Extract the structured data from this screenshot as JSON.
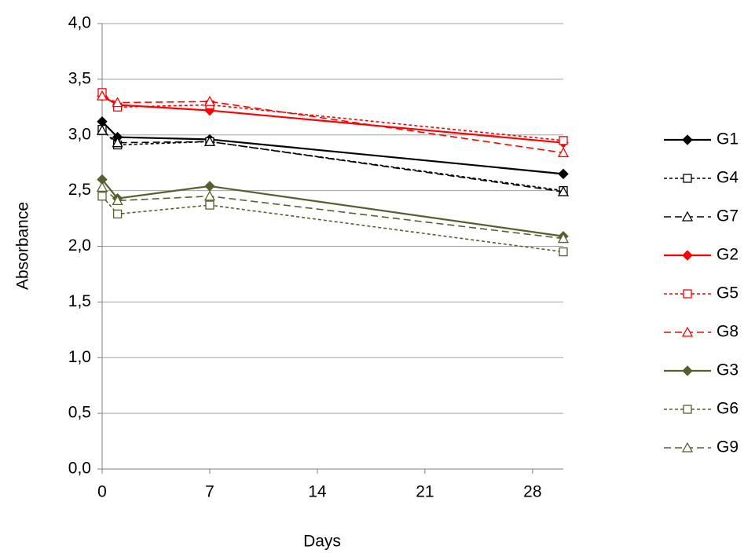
{
  "chart_data": {
    "type": "line",
    "xlabel": "Days",
    "ylabel": "Absorbance",
    "x": [
      0,
      1,
      7,
      30
    ],
    "xlim": [
      0,
      30
    ],
    "xticks": [
      0,
      7,
      14,
      21,
      28
    ],
    "ylim": [
      0,
      4
    ],
    "yticks": [
      {
        "value": 0,
        "label": "0,0"
      },
      {
        "value": 0.5,
        "label": "0,5"
      },
      {
        "value": 1,
        "label": "1,0"
      },
      {
        "value": 1.5,
        "label": "1,5"
      },
      {
        "value": 2,
        "label": "2,0"
      },
      {
        "value": 2.5,
        "label": "2,5"
      },
      {
        "value": 3,
        "label": "3,0"
      },
      {
        "value": 3.5,
        "label": "3,5"
      },
      {
        "value": 4,
        "label": "4,0"
      }
    ],
    "grid": true,
    "legend": "right",
    "series": [
      {
        "name": "G1",
        "color": "#000000",
        "marker": "diamond",
        "dash": "solid",
        "values": [
          3.12,
          2.98,
          2.96,
          2.65
        ]
      },
      {
        "name": "G4",
        "color": "#000000",
        "marker": "square",
        "dash": "short",
        "values": [
          3.05,
          2.91,
          2.94,
          2.5
        ]
      },
      {
        "name": "G7",
        "color": "#000000",
        "marker": "triangle",
        "dash": "long",
        "values": [
          3.04,
          2.93,
          2.94,
          2.49
        ]
      },
      {
        "name": "G2",
        "color": "#ff0000",
        "marker": "diamond",
        "dash": "solid",
        "values": [
          3.35,
          3.27,
          3.22,
          2.93
        ]
      },
      {
        "name": "G5",
        "color": "#ff0000",
        "marker": "square",
        "dash": "short",
        "values": [
          3.38,
          3.25,
          3.27,
          2.95
        ]
      },
      {
        "name": "G8",
        "color": "#ff0000",
        "marker": "triangle",
        "dash": "long",
        "values": [
          3.35,
          3.29,
          3.3,
          2.84
        ]
      },
      {
        "name": "G3",
        "color": "#556030",
        "marker": "diamond",
        "dash": "solid",
        "values": [
          2.6,
          2.43,
          2.54,
          2.09
        ]
      },
      {
        "name": "G6",
        "color": "#556030",
        "marker": "square",
        "dash": "short",
        "values": [
          2.45,
          2.29,
          2.37,
          1.95
        ]
      },
      {
        "name": "G9",
        "color": "#556030",
        "marker": "triangle",
        "dash": "long",
        "values": [
          2.53,
          2.41,
          2.45,
          2.07
        ]
      }
    ]
  }
}
